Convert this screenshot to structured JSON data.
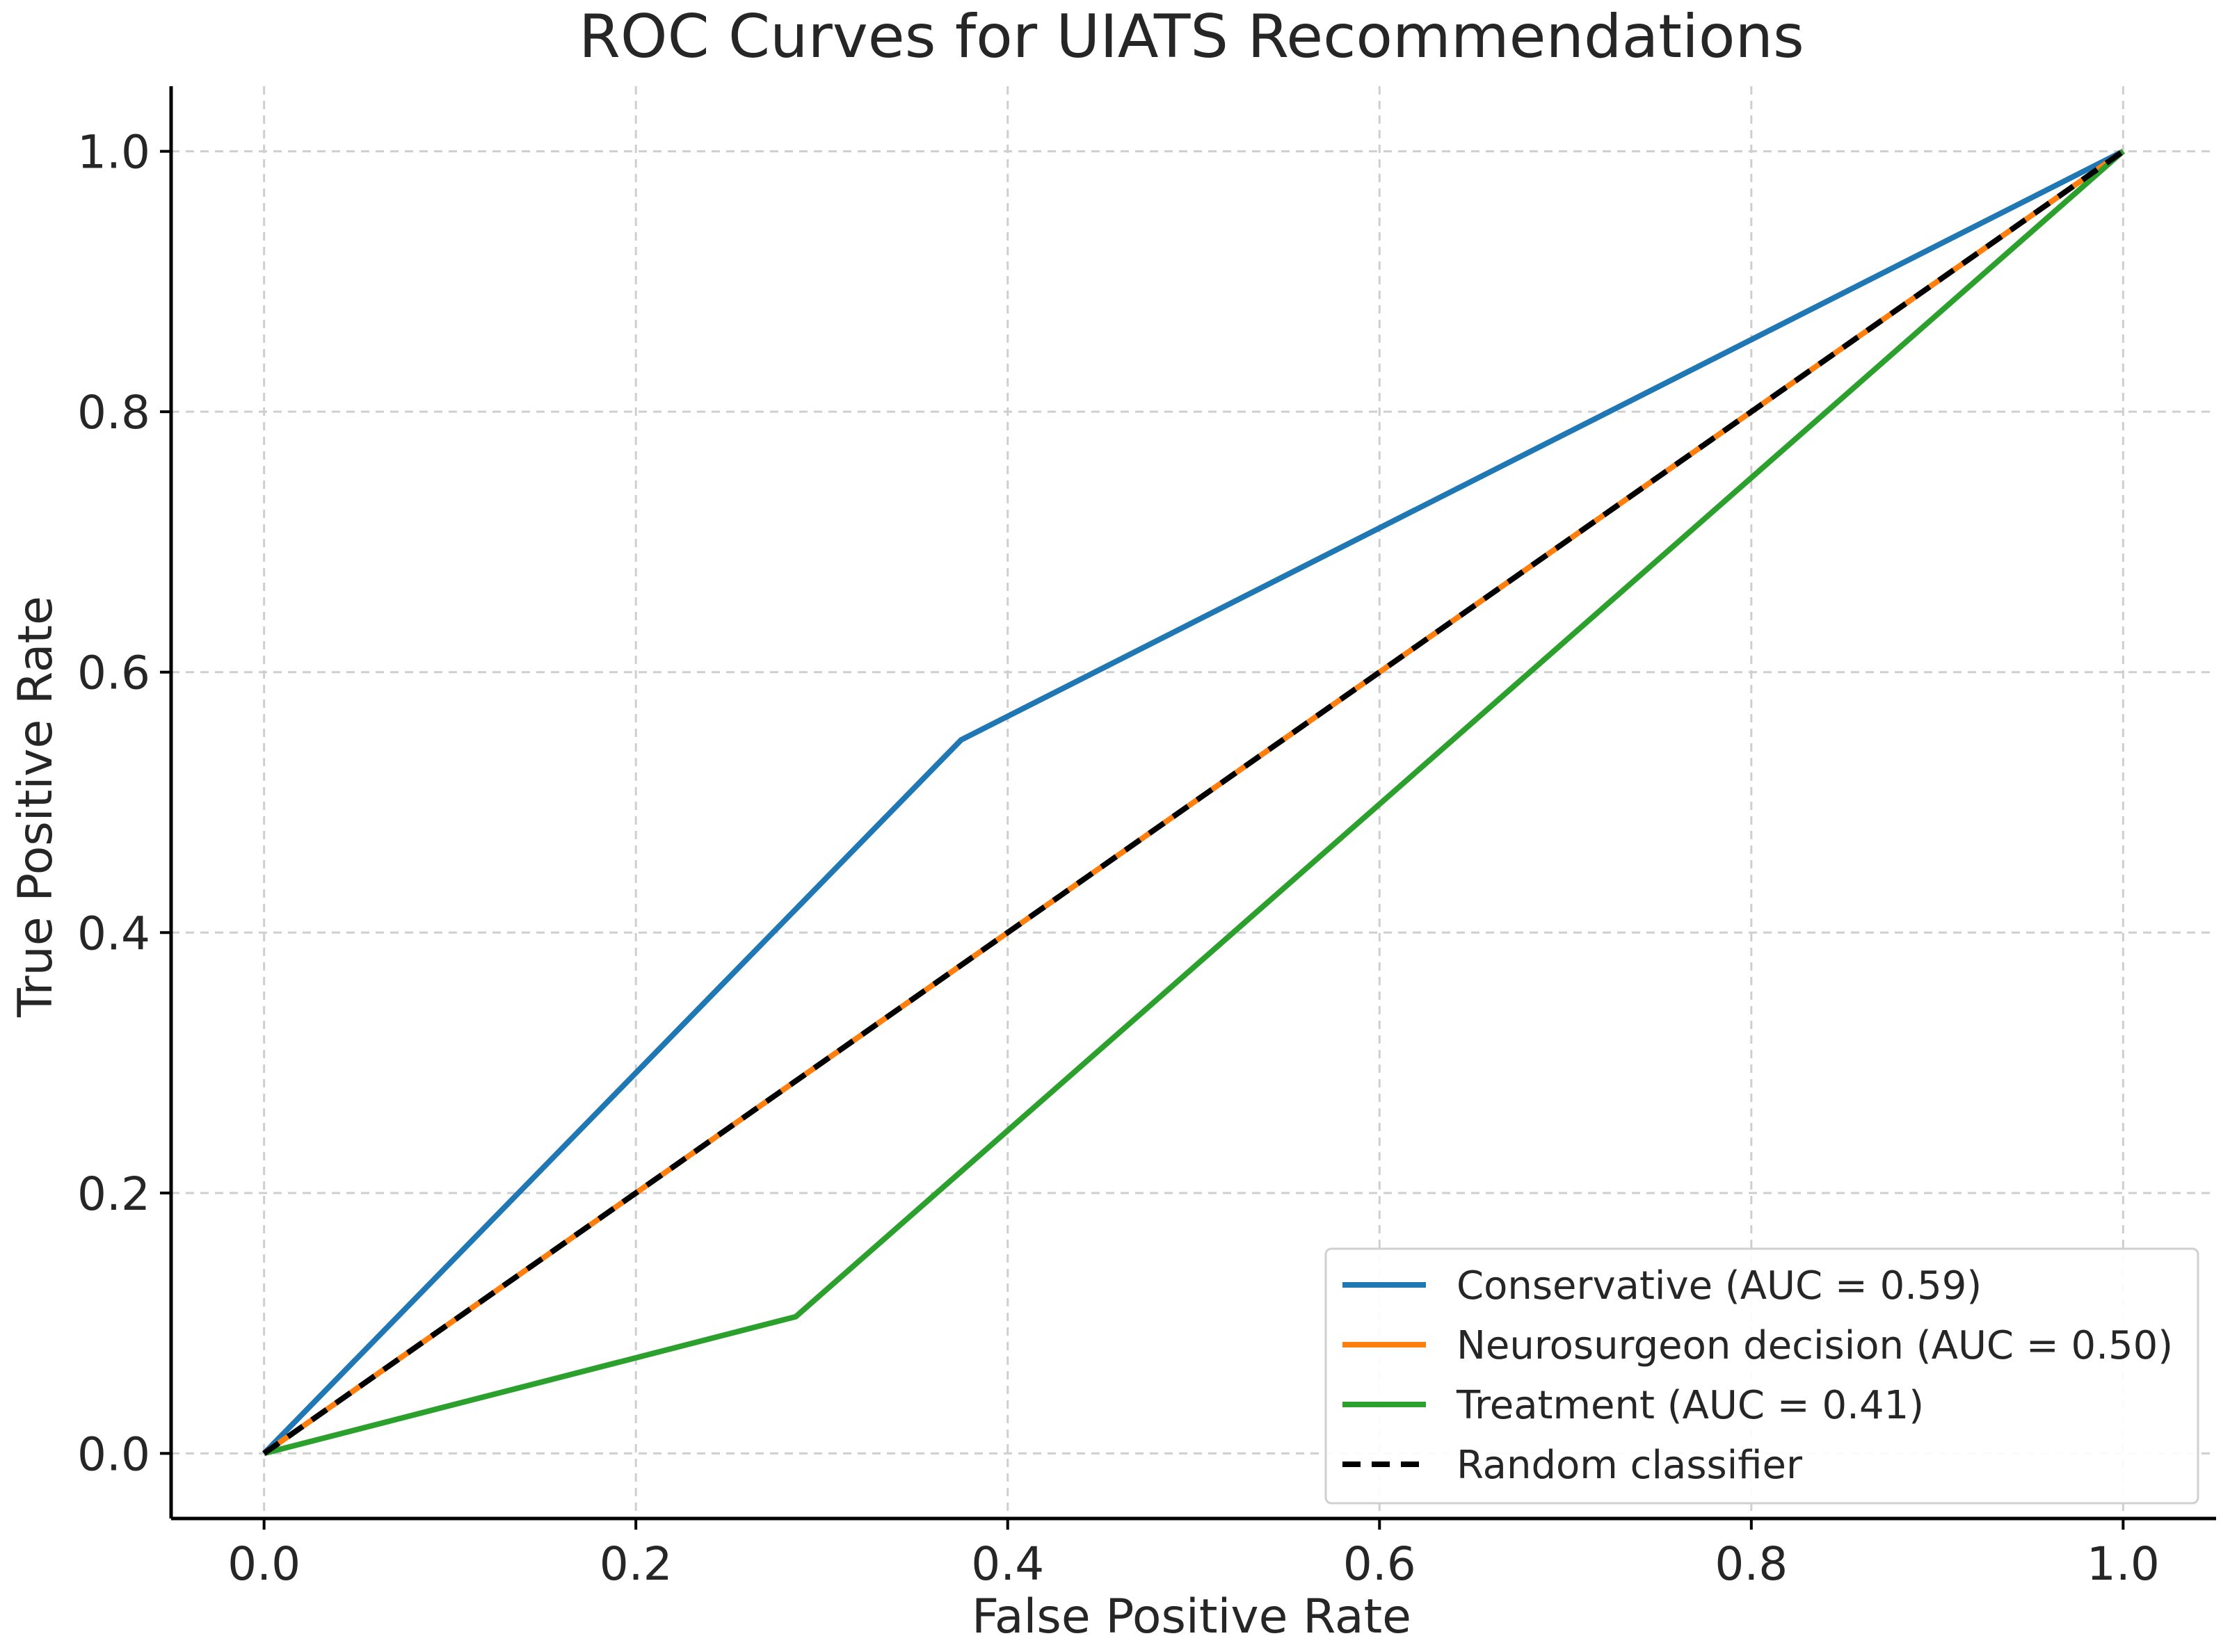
{
  "chart_data": {
    "type": "line",
    "title": "ROC Curves for UIATS Recommendations",
    "xlabel": "False Positive Rate",
    "ylabel": "True Positive Rate",
    "xlim": [
      -0.05,
      1.05
    ],
    "ylim": [
      -0.05,
      1.05
    ],
    "xticks": [
      0.0,
      0.2,
      0.4,
      0.6,
      0.8,
      1.0
    ],
    "yticks": [
      0.0,
      0.2,
      0.4,
      0.6,
      0.8,
      1.0
    ],
    "xtick_labels": [
      "0.0",
      "0.2",
      "0.4",
      "0.6",
      "0.8",
      "1.0"
    ],
    "ytick_labels": [
      "0.0",
      "0.2",
      "0.4",
      "0.6",
      "0.8",
      "1.0"
    ],
    "grid": true,
    "legend_position": "bottom-right",
    "series": [
      {
        "name": "Conservative (AUC = 0.59)",
        "color": "#1f77b4",
        "style": "solid",
        "x": [
          0.0,
          0.375,
          1.0
        ],
        "y": [
          0.0,
          0.548,
          1.0
        ]
      },
      {
        "name": "Neurosurgeon decision (AUC = 0.50)",
        "color": "#ff7f0e",
        "style": "solid",
        "x": [
          0.0,
          1.0
        ],
        "y": [
          0.0,
          1.0
        ]
      },
      {
        "name": "Treatment (AUC = 0.41)",
        "color": "#2ca02c",
        "style": "solid",
        "x": [
          0.0,
          0.286,
          1.0
        ],
        "y": [
          0.0,
          0.105,
          1.0
        ]
      },
      {
        "name": "Random classifier",
        "color": "#000000",
        "style": "dashed",
        "x": [
          0.0,
          1.0
        ],
        "y": [
          0.0,
          1.0
        ]
      }
    ]
  }
}
